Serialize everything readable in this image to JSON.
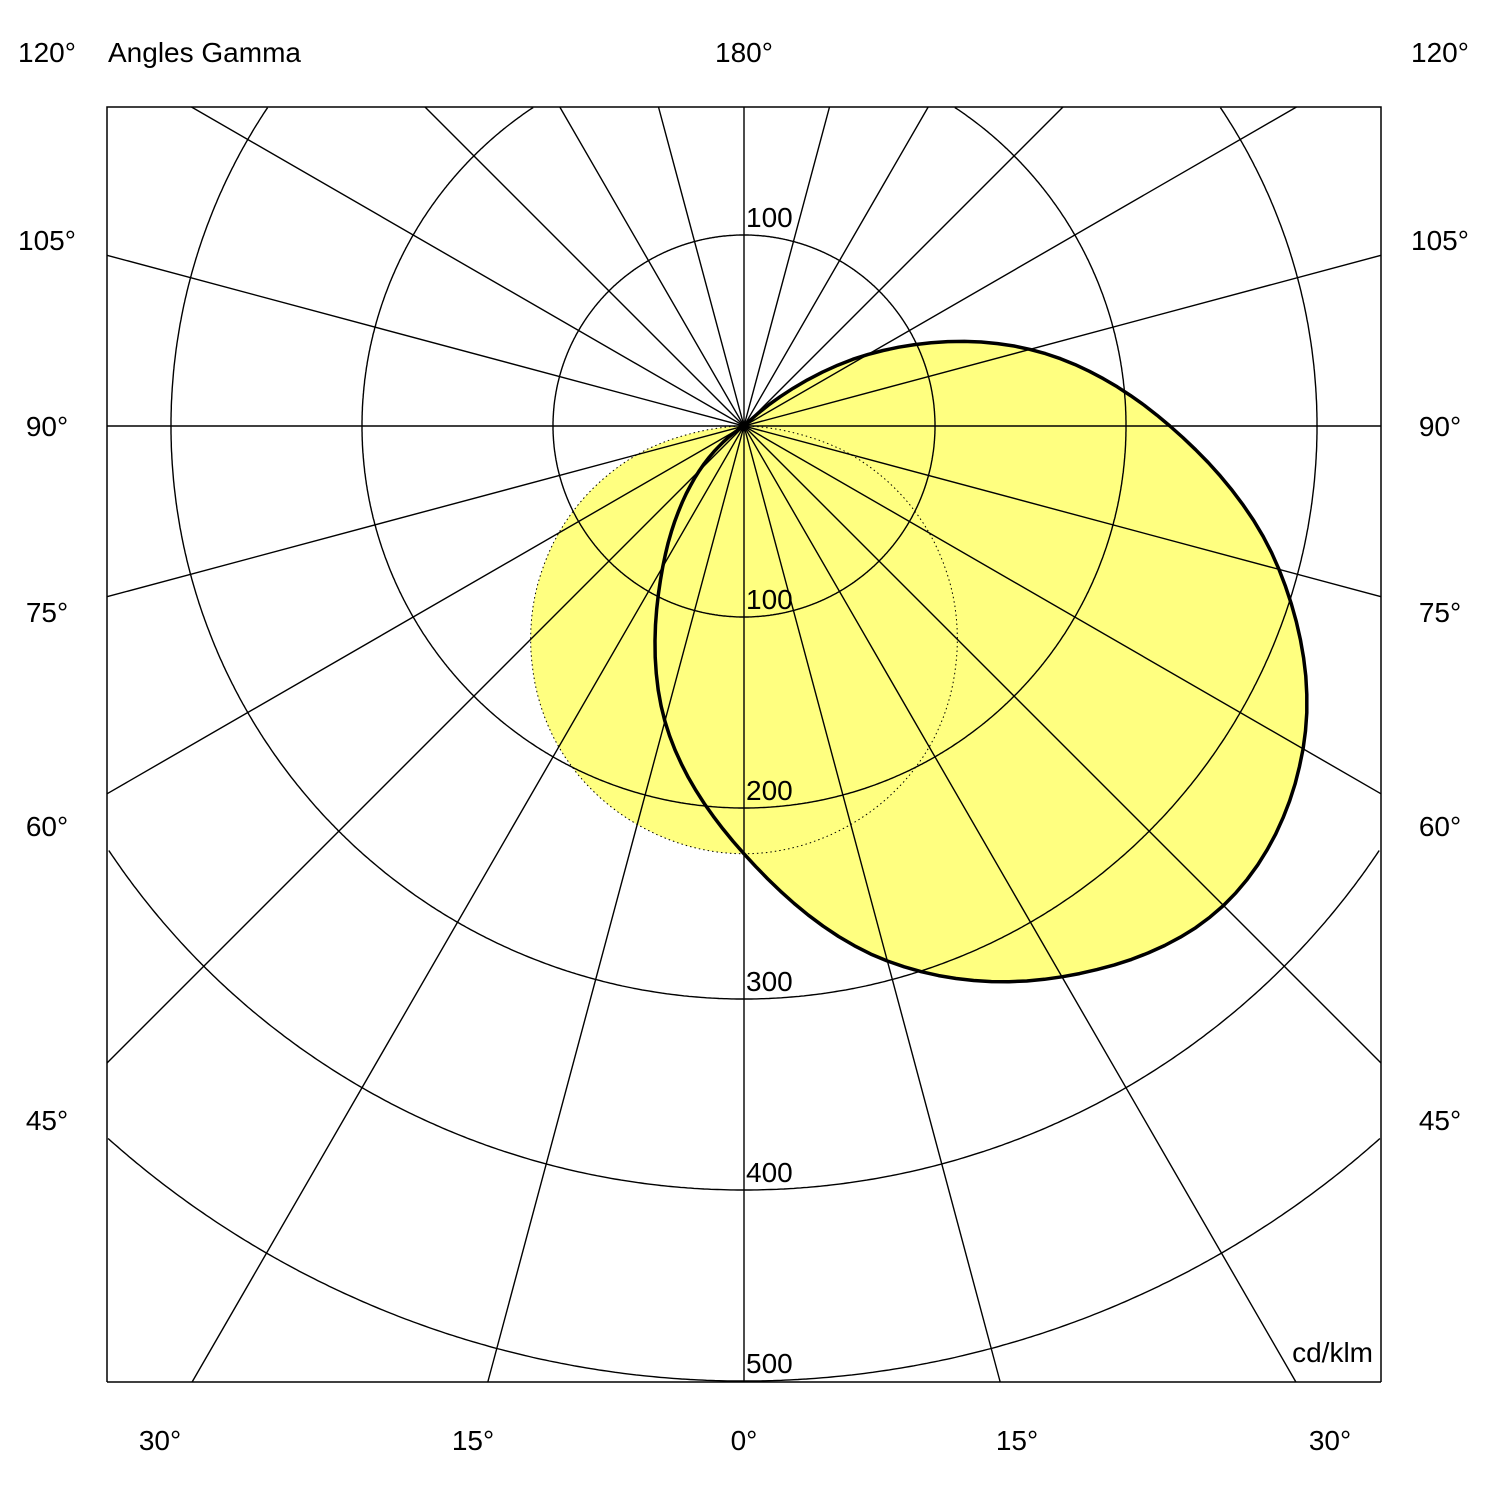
{
  "chart_data": {
    "type": "polar",
    "title": "Angles Gamma",
    "unit": "cd/klm",
    "radial_ticks": [
      100,
      200,
      300,
      400,
      500
    ],
    "radial_range": [
      0,
      500
    ],
    "angle_step_deg": 15,
    "grid": true,
    "top_label": "180°",
    "side_labels": [
      "120°",
      "105°",
      "90°",
      "75°",
      "60°",
      "45°"
    ],
    "bottom_labels": [
      "30°",
      "15°",
      "0°",
      "15°",
      "30°"
    ],
    "fill_color": "#FFFF80",
    "series": [
      {
        "style": "dotted",
        "angles": [
          -90,
          -75,
          -60,
          -45,
          -30,
          -15,
          0,
          15,
          30,
          45,
          60,
          75,
          90
        ],
        "values": [
          0,
          58,
          112,
          158,
          194,
          216,
          224,
          216,
          194,
          158,
          112,
          58,
          0
        ]
      },
      {
        "style": "solid",
        "angles": [
          -60,
          -45,
          -30,
          -15,
          0,
          15,
          30,
          45,
          60,
          75,
          90,
          105,
          120,
          135
        ],
        "values": [
          0,
          33,
          85,
          160,
          224,
          290,
          333,
          355,
          338,
          290,
          223,
          155,
          75,
          0
        ]
      }
    ]
  }
}
